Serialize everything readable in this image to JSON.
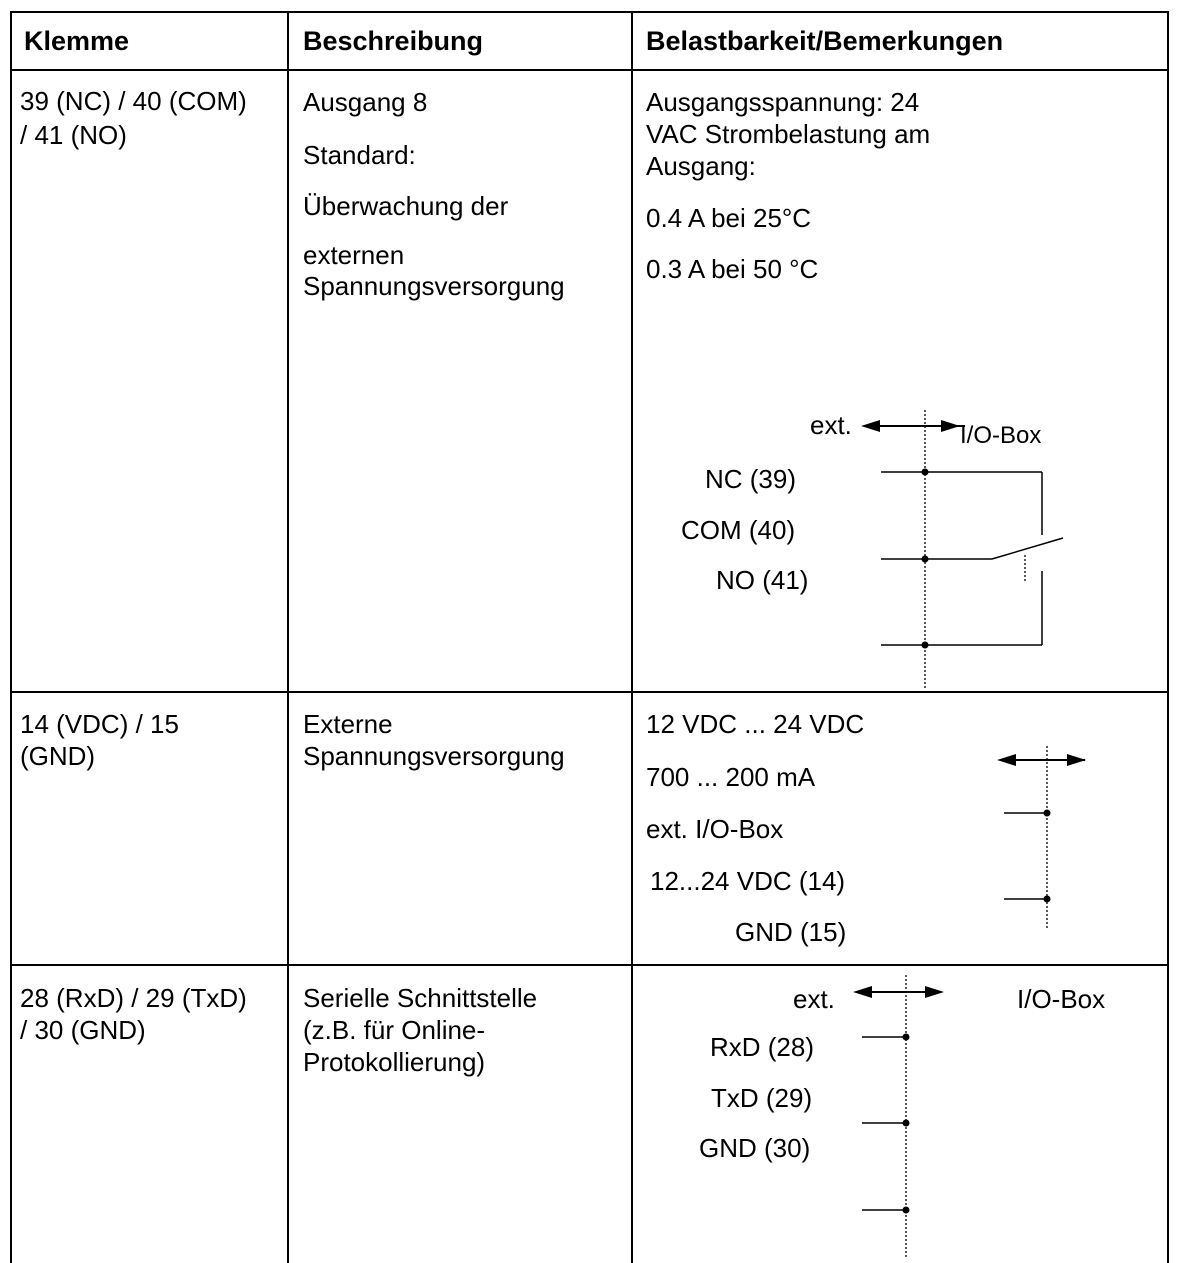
{
  "header": {
    "col1": "Klemme",
    "col2": "Beschreibung",
    "col3": "Belastbarkeit/Bemerkungen"
  },
  "rows": [
    {
      "klemme": [
        "39 (NC) / 40 (COM)",
        "/ 41 (NO)"
      ],
      "beschreibung": [
        "Ausgang 8",
        "Standard:",
        "Überwachung der",
        "externen",
        "Spannungsversorgung"
      ],
      "bemerkungen": [
        "Ausgangsspannung: 24",
        "VAC Strombelastung am",
        "Ausgang:",
        "0.4 A bei 25°C",
        "0.3 A bei 50 °C"
      ],
      "diagram": {
        "ext_label": "ext.",
        "box_label": "I/O-Box",
        "pins": [
          "NC (39)",
          "COM (40)",
          "NO (41)"
        ]
      }
    },
    {
      "klemme": [
        "14 (VDC) / 15",
        "(GND)"
      ],
      "beschreibung": [
        "Externe",
        "Spannungsversorgung"
      ],
      "bemerkungen": [
        "12 VDC ... 24 VDC",
        "700 ... 200 mA",
        "ext. I/O-Box",
        "12...24 VDC (14)",
        "GND (15)"
      ]
    },
    {
      "klemme": [
        "28 (RxD) / 29 (TxD)",
        "/ 30 (GND)"
      ],
      "beschreibung": [
        "Serielle Schnittstelle",
        "(z.B. für Online-",
        "Protokollierung)"
      ],
      "diagram": {
        "ext_label": "ext.",
        "box_label": "I/O-Box",
        "pins": [
          "RxD (28)",
          "TxD (29)",
          "GND (30)"
        ]
      }
    }
  ],
  "colors": {
    "line": "#000000",
    "background": "#ffffff"
  }
}
